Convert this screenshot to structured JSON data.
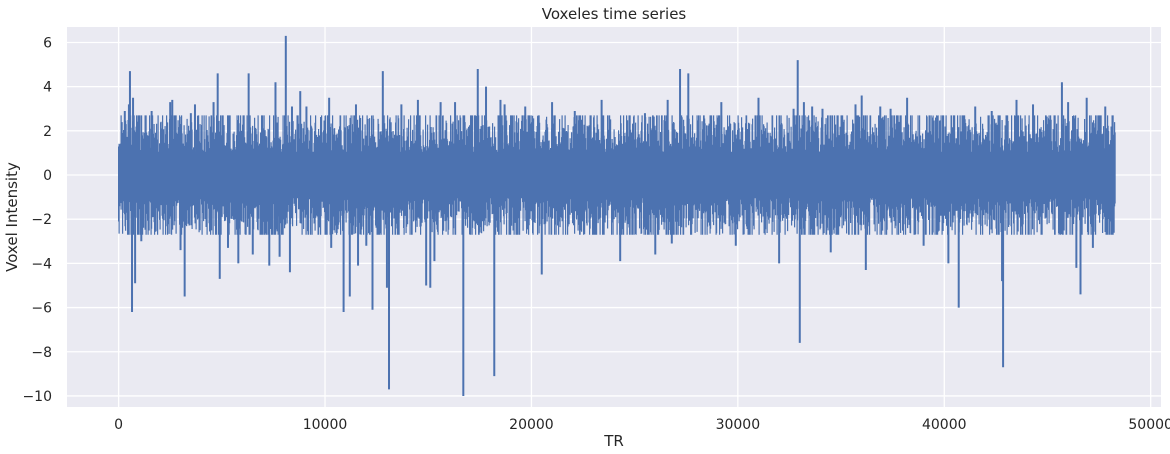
{
  "chart_data": {
    "type": "line",
    "title": "Voxeles time series",
    "xlabel": "TR",
    "ylabel": "Voxel Intensity",
    "xlim": [
      -2500,
      50500
    ],
    "ylim": [
      -10.5,
      6.7
    ],
    "x_ticks": [
      0,
      10000,
      20000,
      30000,
      40000,
      50000
    ],
    "x_tick_labels": [
      "0",
      "10000",
      "20000",
      "30000",
      "40000",
      "50000"
    ],
    "y_ticks": [
      -10,
      -8,
      -6,
      -4,
      -2,
      0,
      2,
      4,
      6
    ],
    "y_tick_labels": [
      "−10",
      "−8",
      "−6",
      "−4",
      "−2",
      "0",
      "2",
      "4",
      "6"
    ],
    "grid": true,
    "background": "#eaeaf2",
    "grid_color": "#ffffff",
    "series": [
      {
        "color": "#4c72b0",
        "x_start": 0,
        "x_end": 48300,
        "body_amplitude": [
          -1.5,
          1.5
        ],
        "typical_envelope": [
          -2.7,
          2.7
        ],
        "spikes": [
          {
            "x": 300,
            "y": 2.9
          },
          {
            "x": 500,
            "y": 3.2
          },
          {
            "x": 550,
            "y": 4.7
          },
          {
            "x": 650,
            "y": -6.2
          },
          {
            "x": 700,
            "y": 3.5
          },
          {
            "x": 800,
            "y": -4.9
          },
          {
            "x": 1100,
            "y": -3.0
          },
          {
            "x": 1600,
            "y": 2.9
          },
          {
            "x": 2500,
            "y": 3.3
          },
          {
            "x": 2600,
            "y": 3.4
          },
          {
            "x": 3000,
            "y": -3.4
          },
          {
            "x": 3200,
            "y": -5.5
          },
          {
            "x": 3500,
            "y": 2.8
          },
          {
            "x": 3700,
            "y": 3.2
          },
          {
            "x": 4600,
            "y": 3.3
          },
          {
            "x": 4800,
            "y": 4.6
          },
          {
            "x": 4900,
            "y": -4.7
          },
          {
            "x": 5300,
            "y": -3.3
          },
          {
            "x": 5800,
            "y": -4.0
          },
          {
            "x": 6300,
            "y": 4.6
          },
          {
            "x": 6500,
            "y": -3.6
          },
          {
            "x": 7300,
            "y": -4.1
          },
          {
            "x": 7600,
            "y": 4.2
          },
          {
            "x": 7800,
            "y": -3.7
          },
          {
            "x": 8100,
            "y": 6.3
          },
          {
            "x": 8300,
            "y": -4.4
          },
          {
            "x": 8400,
            "y": 3.1
          },
          {
            "x": 8800,
            "y": 3.8
          },
          {
            "x": 9100,
            "y": 3.1
          },
          {
            "x": 10200,
            "y": 3.5
          },
          {
            "x": 10300,
            "y": -3.3
          },
          {
            "x": 10900,
            "y": -6.2
          },
          {
            "x": 11200,
            "y": -5.5
          },
          {
            "x": 11500,
            "y": 3.2
          },
          {
            "x": 11600,
            "y": -4.1
          },
          {
            "x": 12000,
            "y": -3.2
          },
          {
            "x": 12300,
            "y": -6.1
          },
          {
            "x": 12800,
            "y": 4.7
          },
          {
            "x": 13000,
            "y": -5.1
          },
          {
            "x": 13100,
            "y": -9.7
          },
          {
            "x": 13700,
            "y": 3.2
          },
          {
            "x": 14500,
            "y": 3.4
          },
          {
            "x": 14900,
            "y": -5.0
          },
          {
            "x": 15100,
            "y": -5.1
          },
          {
            "x": 15300,
            "y": -3.9
          },
          {
            "x": 15600,
            "y": 3.3
          },
          {
            "x": 16300,
            "y": 3.3
          },
          {
            "x": 16700,
            "y": -10.0
          },
          {
            "x": 17400,
            "y": 4.8
          },
          {
            "x": 17800,
            "y": 4.0
          },
          {
            "x": 18200,
            "y": -9.1
          },
          {
            "x": 18500,
            "y": 3.4
          },
          {
            "x": 18700,
            "y": 3.2
          },
          {
            "x": 19700,
            "y": 3.1
          },
          {
            "x": 20500,
            "y": -4.5
          },
          {
            "x": 21000,
            "y": 3.3
          },
          {
            "x": 22100,
            "y": 2.9
          },
          {
            "x": 23400,
            "y": 3.4
          },
          {
            "x": 24300,
            "y": -3.9
          },
          {
            "x": 25500,
            "y": 2.8
          },
          {
            "x": 26000,
            "y": -3.6
          },
          {
            "x": 26600,
            "y": 3.4
          },
          {
            "x": 26800,
            "y": -3.1
          },
          {
            "x": 27200,
            "y": 4.8
          },
          {
            "x": 27600,
            "y": 4.6
          },
          {
            "x": 29200,
            "y": 3.3
          },
          {
            "x": 29900,
            "y": -3.2
          },
          {
            "x": 31000,
            "y": 3.5
          },
          {
            "x": 32000,
            "y": -4.0
          },
          {
            "x": 32700,
            "y": 3.0
          },
          {
            "x": 32900,
            "y": 5.2
          },
          {
            "x": 33000,
            "y": -7.6
          },
          {
            "x": 33200,
            "y": 3.3
          },
          {
            "x": 33600,
            "y": 3.1
          },
          {
            "x": 34100,
            "y": 3.0
          },
          {
            "x": 34500,
            "y": -3.5
          },
          {
            "x": 35700,
            "y": 3.2
          },
          {
            "x": 36000,
            "y": 3.6
          },
          {
            "x": 36200,
            "y": -4.3
          },
          {
            "x": 36900,
            "y": 3.1
          },
          {
            "x": 37400,
            "y": 3.0
          },
          {
            "x": 38200,
            "y": 3.5
          },
          {
            "x": 39000,
            "y": -3.2
          },
          {
            "x": 40200,
            "y": -4.0
          },
          {
            "x": 40700,
            "y": -6.0
          },
          {
            "x": 41500,
            "y": 3.1
          },
          {
            "x": 42300,
            "y": 2.9
          },
          {
            "x": 42800,
            "y": -4.8
          },
          {
            "x": 42850,
            "y": -8.7
          },
          {
            "x": 43500,
            "y": 3.4
          },
          {
            "x": 44300,
            "y": 3.2
          },
          {
            "x": 45700,
            "y": 4.2
          },
          {
            "x": 46000,
            "y": 3.3
          },
          {
            "x": 46400,
            "y": -4.2
          },
          {
            "x": 46600,
            "y": -5.4
          },
          {
            "x": 46900,
            "y": 3.5
          },
          {
            "x": 47200,
            "y": -3.3
          },
          {
            "x": 47800,
            "y": 3.1
          }
        ]
      }
    ]
  }
}
